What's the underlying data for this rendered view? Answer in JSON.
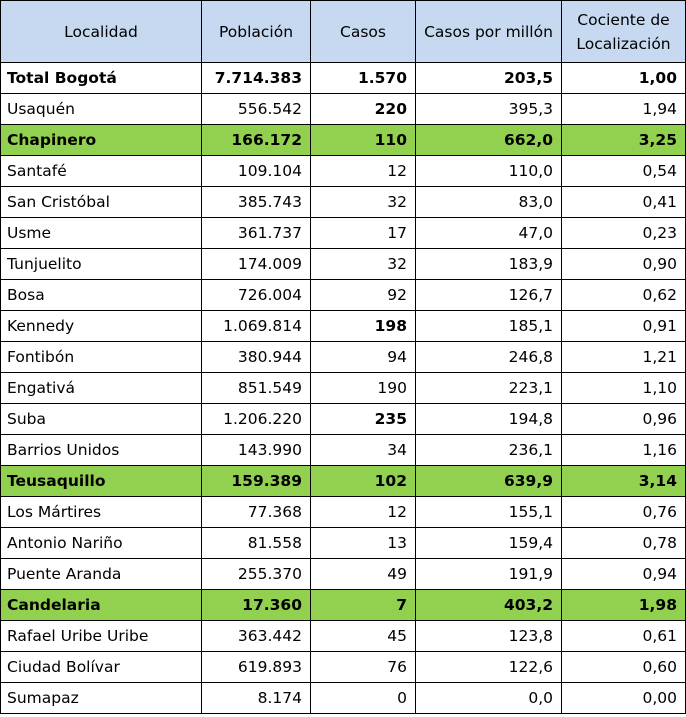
{
  "table": {
    "headers": [
      "Localidad",
      "Población",
      "Casos",
      "Casos por millón",
      "Cociente de Localización"
    ],
    "rows": [
      {
        "name": "Total Bogotá",
        "poblacion": "7.714.383",
        "casos": "1.570",
        "casos_millon": "203,5",
        "cociente": "1,00"
      },
      {
        "name": "Usaquén",
        "poblacion": "556.542",
        "casos": "220",
        "casos_millon": "395,3",
        "cociente": "1,94"
      },
      {
        "name": "Chapinero",
        "poblacion": "166.172",
        "casos": "110",
        "casos_millon": "662,0",
        "cociente": "3,25"
      },
      {
        "name": "Santafé",
        "poblacion": "109.104",
        "casos": "12",
        "casos_millon": "110,0",
        "cociente": "0,54"
      },
      {
        "name": "San Cristóbal",
        "poblacion": "385.743",
        "casos": "32",
        "casos_millon": "83,0",
        "cociente": "0,41"
      },
      {
        "name": "Usme",
        "poblacion": "361.737",
        "casos": "17",
        "casos_millon": "47,0",
        "cociente": "0,23"
      },
      {
        "name": "Tunjuelito",
        "poblacion": "174.009",
        "casos": "32",
        "casos_millon": "183,9",
        "cociente": "0,90"
      },
      {
        "name": "Bosa",
        "poblacion": "726.004",
        "casos": "92",
        "casos_millon": "126,7",
        "cociente": "0,62"
      },
      {
        "name": "Kennedy",
        "poblacion": "1.069.814",
        "casos": "198",
        "casos_millon": "185,1",
        "cociente": "0,91"
      },
      {
        "name": "Fontibón",
        "poblacion": "380.944",
        "casos": "94",
        "casos_millon": "246,8",
        "cociente": "1,21"
      },
      {
        "name": "Engativá",
        "poblacion": "851.549",
        "casos": "190",
        "casos_millon": "223,1",
        "cociente": "1,10"
      },
      {
        "name": "Suba",
        "poblacion": "1.206.220",
        "casos": "235",
        "casos_millon": "194,8",
        "cociente": "0,96"
      },
      {
        "name": "Barrios Unidos",
        "poblacion": "143.990",
        "casos": "34",
        "casos_millon": "236,1",
        "cociente": "1,16"
      },
      {
        "name": "Teusaquillo",
        "poblacion": "159.389",
        "casos": "102",
        "casos_millon": "639,9",
        "cociente": "3,14"
      },
      {
        "name": "Los Mártires",
        "poblacion": "77.368",
        "casos": "12",
        "casos_millon": "155,1",
        "cociente": "0,76"
      },
      {
        "name": "Antonio Nariño",
        "poblacion": "81.558",
        "casos": "13",
        "casos_millon": "159,4",
        "cociente": "0,78"
      },
      {
        "name": "Puente Aranda",
        "poblacion": "255.370",
        "casos": "49",
        "casos_millon": "191,9",
        "cociente": "0,94"
      },
      {
        "name": "Candelaria",
        "poblacion": "17.360",
        "casos": "7",
        "casos_millon": "403,2",
        "cociente": "1,98"
      },
      {
        "name": "Rafael Uribe Uribe",
        "poblacion": "363.442",
        "casos": "45",
        "casos_millon": "123,8",
        "cociente": "0,61"
      },
      {
        "name": "Ciudad Bolívar",
        "poblacion": "619.893",
        "casos": "76",
        "casos_millon": "122,6",
        "cociente": "0,60"
      },
      {
        "name": "Sumapaz",
        "poblacion": "8.174",
        "casos": "0",
        "casos_millon": "0,0",
        "cociente": "0,00"
      }
    ]
  },
  "colors": {
    "header_bg": "#c6d9f1",
    "highlight_bg": "#92d050"
  }
}
